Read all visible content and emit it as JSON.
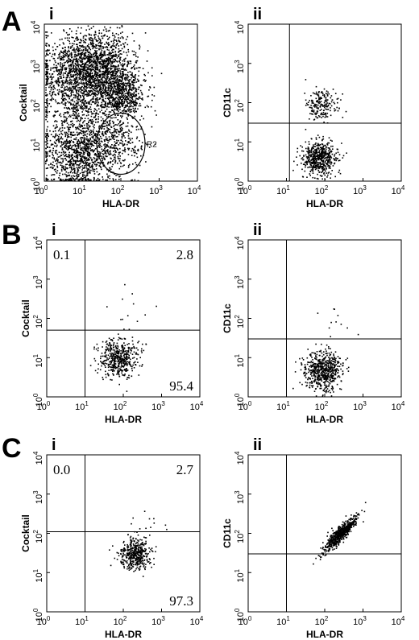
{
  "figure": {
    "rows": [
      {
        "letter": "A"
      },
      {
        "letter": "B"
      },
      {
        "letter": "C"
      }
    ]
  },
  "chart_data": [
    {
      "id": "A-i",
      "row": "A",
      "panel": "i",
      "type": "scatter",
      "xlabel": "HLA-DR",
      "ylabel": "Cocktail",
      "scale": "log",
      "xlim": [
        1,
        10000
      ],
      "ylim": [
        1,
        10000
      ],
      "ticks": [
        "10",
        "10",
        "10",
        "10",
        "10"
      ],
      "tick_exponents": [
        "0",
        "1",
        "2",
        "3",
        "4"
      ],
      "gate": {
        "label": "R2",
        "center": [
          100,
          9
        ],
        "shape": "ellipse"
      },
      "populations": [
        {
          "x_center": 7,
          "y_center": 450,
          "spread": 0.55,
          "n": 1400
        },
        {
          "x_center": 30,
          "y_center": 1000,
          "spread": 0.45,
          "n": 900
        },
        {
          "x_center": 90,
          "y_center": 170,
          "spread": 0.3,
          "n": 700
        },
        {
          "x_center": 8,
          "y_center": 6,
          "spread": 0.5,
          "n": 1200
        },
        {
          "x_center": 90,
          "y_center": 9,
          "spread": 0.3,
          "n": 250
        }
      ]
    },
    {
      "id": "A-ii",
      "row": "A",
      "panel": "ii",
      "type": "scatter",
      "xlabel": "HLA-DR",
      "ylabel": "CD11c",
      "scale": "log",
      "xlim": [
        1,
        10000
      ],
      "ylim": [
        1,
        10000
      ],
      "ticks": [
        "10",
        "10",
        "10",
        "10",
        "10"
      ],
      "tick_exponents": [
        "0",
        "1",
        "2",
        "3",
        "4"
      ],
      "quadrant": {
        "x": 12,
        "y": 30
      },
      "populations": [
        {
          "x_center": 70,
          "y_center": 4,
          "spread": 0.22,
          "n": 550
        },
        {
          "x_center": 80,
          "y_center": 90,
          "spread": 0.2,
          "n": 200
        }
      ]
    },
    {
      "id": "B-i",
      "row": "B",
      "panel": "i",
      "type": "scatter",
      "xlabel": "HLA-DR",
      "ylabel": "Cocktail",
      "scale": "log",
      "xlim": [
        1,
        10000
      ],
      "ylim": [
        1,
        10000
      ],
      "ticks": [
        "10",
        "10",
        "10",
        "10",
        "10"
      ],
      "tick_exponents": [
        "0",
        "1",
        "2",
        "3",
        "4"
      ],
      "quadrant": {
        "x": 10,
        "y": 50
      },
      "quadrant_percent": {
        "upper_left": "0.1",
        "upper_right": "2.8",
        "lower_right": "95.4"
      },
      "populations": [
        {
          "x_center": 70,
          "y_center": 10,
          "spread": 0.25,
          "n": 480
        },
        {
          "x_center": 150,
          "y_center": 150,
          "spread": 0.4,
          "n": 14
        }
      ]
    },
    {
      "id": "B-ii",
      "row": "B",
      "panel": "ii",
      "type": "scatter",
      "xlabel": "HLA-DR",
      "ylabel": "CD11c",
      "scale": "log",
      "xlim": [
        1,
        10000
      ],
      "ylim": [
        1,
        10000
      ],
      "ticks": [
        "10",
        "10",
        "10",
        "10",
        "10"
      ],
      "tick_exponents": [
        "0",
        "1",
        "2",
        "3",
        "4"
      ],
      "quadrant": {
        "x": 10,
        "y": 30
      },
      "populations": [
        {
          "x_center": 90,
          "y_center": 5,
          "spread": 0.25,
          "n": 600
        },
        {
          "x_center": 150,
          "y_center": 60,
          "spread": 0.4,
          "n": 14
        }
      ]
    },
    {
      "id": "C-i",
      "row": "C",
      "panel": "i",
      "type": "scatter",
      "xlabel": "HLA-DR",
      "ylabel": "Cocktail",
      "scale": "log",
      "xlim": [
        1,
        10000
      ],
      "ylim": [
        1,
        10000
      ],
      "ticks": [
        "10",
        "10",
        "10",
        "10",
        "10"
      ],
      "tick_exponents": [
        "0",
        "1",
        "2",
        "3",
        "4"
      ],
      "quadrant": {
        "x": 10,
        "y": 110
      },
      "quadrant_percent": {
        "upper_left": "0.0",
        "upper_right": "2.7",
        "lower_right": "97.3"
      },
      "populations": [
        {
          "x_center": 200,
          "y_center": 30,
          "spread": 0.2,
          "n": 430
        },
        {
          "x_center": 500,
          "y_center": 150,
          "spread": 0.3,
          "n": 14
        }
      ]
    },
    {
      "id": "C-ii",
      "row": "C",
      "panel": "ii",
      "type": "scatter",
      "xlabel": "HLA-DR",
      "ylabel": "CD11c",
      "scale": "log",
      "xlim": [
        1,
        10000
      ],
      "ylim": [
        1,
        10000
      ],
      "ticks": [
        "10",
        "10",
        "10",
        "10",
        "10"
      ],
      "tick_exponents": [
        "0",
        "1",
        "2",
        "3",
        "4"
      ],
      "quadrant": {
        "x": 10,
        "y": 30
      },
      "populations": [
        {
          "x_center": 250,
          "y_center": 100,
          "spread": 0.22,
          "correlated": true,
          "n": 620
        }
      ]
    }
  ]
}
